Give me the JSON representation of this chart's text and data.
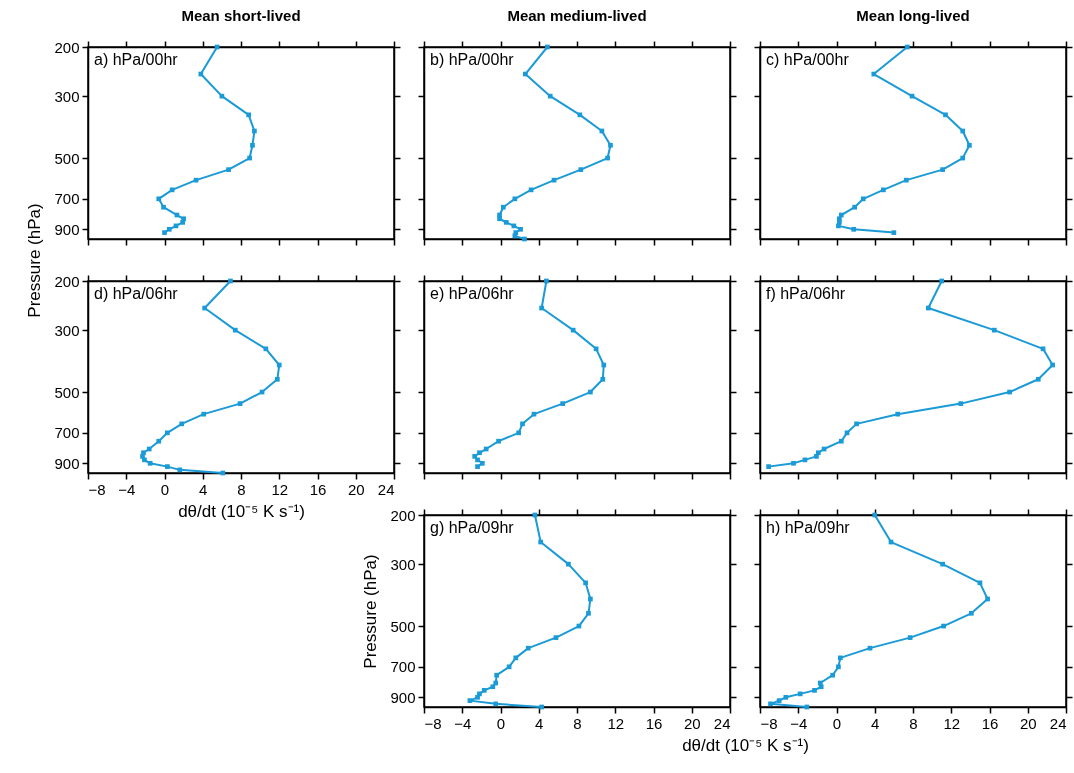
{
  "chart_data": [
    {
      "type": "line",
      "title": "Mean short-lived",
      "annotations": [
        "a) hPa/00hr"
      ],
      "xlim": [
        -8,
        24
      ],
      "xticks": [
        -8,
        -4,
        0,
        4,
        8,
        12,
        16,
        20,
        24
      ],
      "ylim": [
        975,
        200
      ],
      "yticks": [
        200,
        300,
        500,
        700,
        900
      ],
      "log": "y",
      "marker": "square",
      "tick_labels": "y",
      "series": [
        {
          "color": "#1a9ad6",
          "x": [
            5.5,
            3.8,
            6.0,
            8.8,
            9.4,
            9.2,
            8.9,
            6.7,
            3.3,
            0.8,
            -0.6,
            -0.1,
            1.3,
            2.0,
            1.9,
            1.2,
            0.5,
            0.0
          ],
          "values": [
            200,
            250,
            300,
            350,
            400,
            450,
            500,
            550,
            600,
            650,
            700,
            750,
            800,
            825,
            850,
            875,
            900,
            925
          ]
        }
      ]
    },
    {
      "type": "line",
      "title": "Mean medium-lived",
      "annotations": [
        "b) hPa/00hr"
      ],
      "xlim": [
        -8,
        24
      ],
      "xticks": [
        -8,
        -4,
        0,
        4,
        8,
        12,
        16,
        20,
        24
      ],
      "ylim": [
        975,
        200
      ],
      "yticks": [
        200,
        300,
        500,
        700,
        900
      ],
      "log": "y",
      "marker": "square",
      "tick_labels": false,
      "series": [
        {
          "color": "#1a9ad6",
          "x": [
            4.9,
            2.6,
            5.2,
            8.3,
            10.6,
            11.5,
            11.2,
            8.4,
            5.6,
            3.2,
            1.5,
            0.3,
            -0.1,
            -0.1,
            0.6,
            1.4,
            2.1,
            1.6,
            1.5,
            2.5
          ],
          "values": [
            200,
            250,
            300,
            350,
            400,
            450,
            500,
            550,
            600,
            650,
            700,
            750,
            800,
            825,
            850,
            875,
            900,
            925,
            950,
            975
          ]
        }
      ]
    },
    {
      "type": "line",
      "title": "Mean long-lived",
      "annotations": [
        "c) hPa/00hr"
      ],
      "xlim": [
        -8,
        24
      ],
      "xticks": [
        -8,
        -4,
        0,
        4,
        8,
        12,
        16,
        20,
        24
      ],
      "ylim": [
        975,
        200
      ],
      "yticks": [
        200,
        300,
        500,
        700,
        900
      ],
      "log": "y",
      "marker": "square",
      "tick_labels": false,
      "series": [
        {
          "color": "#1a9ad6",
          "x": [
            7.4,
            3.9,
            7.9,
            11.4,
            13.2,
            13.9,
            13.2,
            11.1,
            7.3,
            4.9,
            2.8,
            1.9,
            0.5,
            0.3,
            0.3,
            0.2,
            1.8,
            6.0
          ],
          "values": [
            200,
            250,
            300,
            350,
            400,
            450,
            500,
            550,
            600,
            650,
            700,
            750,
            800,
            825,
            850,
            875,
            900,
            925
          ]
        }
      ]
    },
    {
      "type": "line",
      "annotations": [
        "d) hPa/06hr"
      ],
      "xlabel": "dθ/dt (10⁻⁵ K s⁻¹)",
      "ylabel": "Pressure (hPa)",
      "xlim": [
        -8,
        24
      ],
      "xticks": [
        -8,
        -4,
        0,
        4,
        8,
        12,
        16,
        20,
        24
      ],
      "ylim": [
        975,
        200
      ],
      "yticks": [
        200,
        300,
        500,
        700,
        900
      ],
      "log": "y",
      "marker": "square",
      "series": [
        {
          "color": "#1a9ad6",
          "x": [
            6.9,
            4.2,
            7.4,
            10.6,
            12.0,
            11.8,
            10.2,
            7.9,
            4.1,
            1.8,
            0.3,
            -0.6,
            -1.6,
            -2.2,
            -2.3,
            -2.1,
            -1.5,
            0.3,
            1.6,
            6.1
          ],
          "values": [
            200,
            250,
            300,
            350,
            400,
            450,
            500,
            550,
            600,
            650,
            700,
            750,
            800,
            825,
            850,
            875,
            900,
            925,
            950,
            975
          ]
        }
      ]
    },
    {
      "type": "line",
      "annotations": [
        "e) hPa/06hr"
      ],
      "xlim": [
        -8,
        24
      ],
      "xticks": [
        -8,
        -4,
        0,
        4,
        8,
        12,
        16,
        20,
        24
      ],
      "ylim": [
        975,
        200
      ],
      "yticks": [
        200,
        300,
        500,
        700,
        900
      ],
      "log": "y",
      "marker": "square",
      "tick_labels": false,
      "series": [
        {
          "color": "#1a9ad6",
          "x": [
            4.8,
            4.3,
            7.6,
            10.0,
            10.8,
            10.7,
            9.4,
            6.5,
            3.5,
            2.3,
            1.9,
            -0.2,
            -1.5,
            -2.2,
            -2.7,
            -2.4,
            -1.9,
            -2.4
          ],
          "values": [
            200,
            250,
            300,
            350,
            400,
            450,
            500,
            550,
            600,
            650,
            700,
            750,
            800,
            825,
            850,
            875,
            900,
            925
          ]
        }
      ]
    },
    {
      "type": "line",
      "annotations": [
        "f) hPa/06hr"
      ],
      "xlim": [
        -8,
        24
      ],
      "xticks": [
        -8,
        -4,
        0,
        4,
        8,
        12,
        16,
        20,
        24
      ],
      "ylim": [
        975,
        200
      ],
      "yticks": [
        200,
        300,
        500,
        700,
        900
      ],
      "log": "y",
      "marker": "square",
      "tick_labels": false,
      "series": [
        {
          "color": "#1a9ad6",
          "x": [
            11.0,
            9.6,
            16.5,
            21.6,
            22.6,
            21.1,
            18.1,
            13.0,
            6.4,
            2.1,
            1.1,
            0.5,
            -1.3,
            -1.9,
            -2.1,
            -3.3,
            -4.5,
            -7.1
          ],
          "values": [
            200,
            250,
            300,
            350,
            400,
            450,
            500,
            550,
            600,
            650,
            700,
            750,
            800,
            825,
            850,
            875,
            900,
            925
          ]
        }
      ]
    },
    {
      "type": "line",
      "annotations": [
        "g) hPa/09hr"
      ],
      "xlabel": "dθ/dt (10⁻⁵ K s⁻¹)",
      "ylabel": "Pressure (hPa)",
      "xlim": [
        -8,
        24
      ],
      "xticks": [
        -8,
        -4,
        0,
        4,
        8,
        12,
        16,
        20,
        24
      ],
      "ylim": [
        975,
        200
      ],
      "yticks": [
        200,
        300,
        500,
        700,
        900
      ],
      "log": "y",
      "marker": "square",
      "series": [
        {
          "color": "#1a9ad6",
          "x": [
            3.6,
            4.2,
            7.1,
            8.9,
            9.4,
            9.2,
            8.2,
            5.8,
            2.9,
            1.6,
            0.9,
            -0.4,
            -0.5,
            -0.8,
            -1.7,
            -2.2,
            -2.4,
            -3.2,
            -0.5,
            4.3
          ],
          "values": [
            200,
            250,
            300,
            350,
            400,
            450,
            500,
            550,
            600,
            650,
            700,
            750,
            800,
            825,
            850,
            875,
            900,
            925,
            950,
            975
          ]
        }
      ]
    },
    {
      "type": "line",
      "annotations": [
        "h) hPa/09hr"
      ],
      "xlim": [
        -8,
        24
      ],
      "xticks": [
        -8,
        -4,
        0,
        4,
        8,
        12,
        16,
        20,
        24
      ],
      "ylim": [
        975,
        200
      ],
      "yticks": [
        200,
        300,
        500,
        700,
        900
      ],
      "log": "y",
      "marker": "square",
      "tick_labels": "x",
      "series": [
        {
          "color": "#1a9ad6",
          "x": [
            4.0,
            5.7,
            11.1,
            15.0,
            15.8,
            14.1,
            11.2,
            7.7,
            3.5,
            0.4,
            0.2,
            -0.4,
            -1.7,
            -1.6,
            -2.3,
            -3.8,
            -5.3,
            -6.0,
            -6.9,
            -3.1
          ],
          "values": [
            200,
            250,
            300,
            350,
            400,
            450,
            500,
            550,
            600,
            650,
            700,
            750,
            800,
            825,
            850,
            875,
            900,
            925,
            950,
            975
          ]
        }
      ]
    }
  ]
}
